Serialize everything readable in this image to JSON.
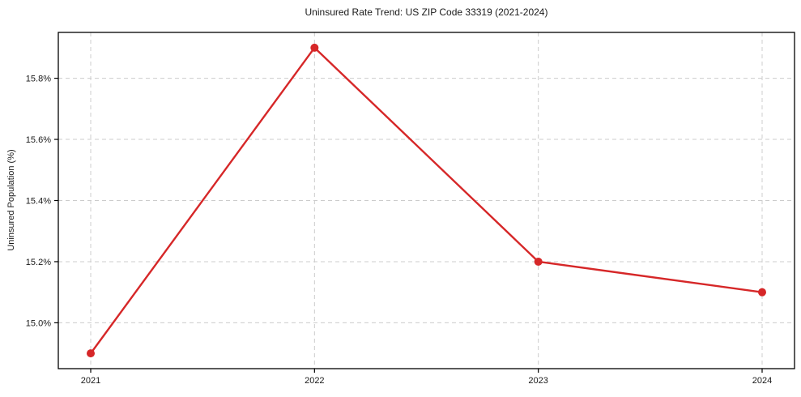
{
  "chart_data": {
    "type": "line",
    "title": "Uninsured Rate Trend: US ZIP Code 33319 (2021-2024)",
    "xlabel": "",
    "ylabel": "Uninsured Population (%)",
    "categories": [
      "2021",
      "2022",
      "2023",
      "2024"
    ],
    "values": [
      14.9,
      15.9,
      15.2,
      15.1
    ],
    "y_ticks": [
      15.0,
      15.2,
      15.4,
      15.6,
      15.8
    ],
    "y_tick_labels": [
      "15.0%",
      "15.2%",
      "15.4%",
      "15.6%",
      "15.8%"
    ],
    "ylim": [
      14.85,
      15.95
    ],
    "grid": true,
    "legend": "none",
    "line_color": "#d62728",
    "marker_color": "#d62728",
    "grid_color": "#cccccc",
    "axis_color": "#000000",
    "text_color": "#1a1a1a"
  }
}
